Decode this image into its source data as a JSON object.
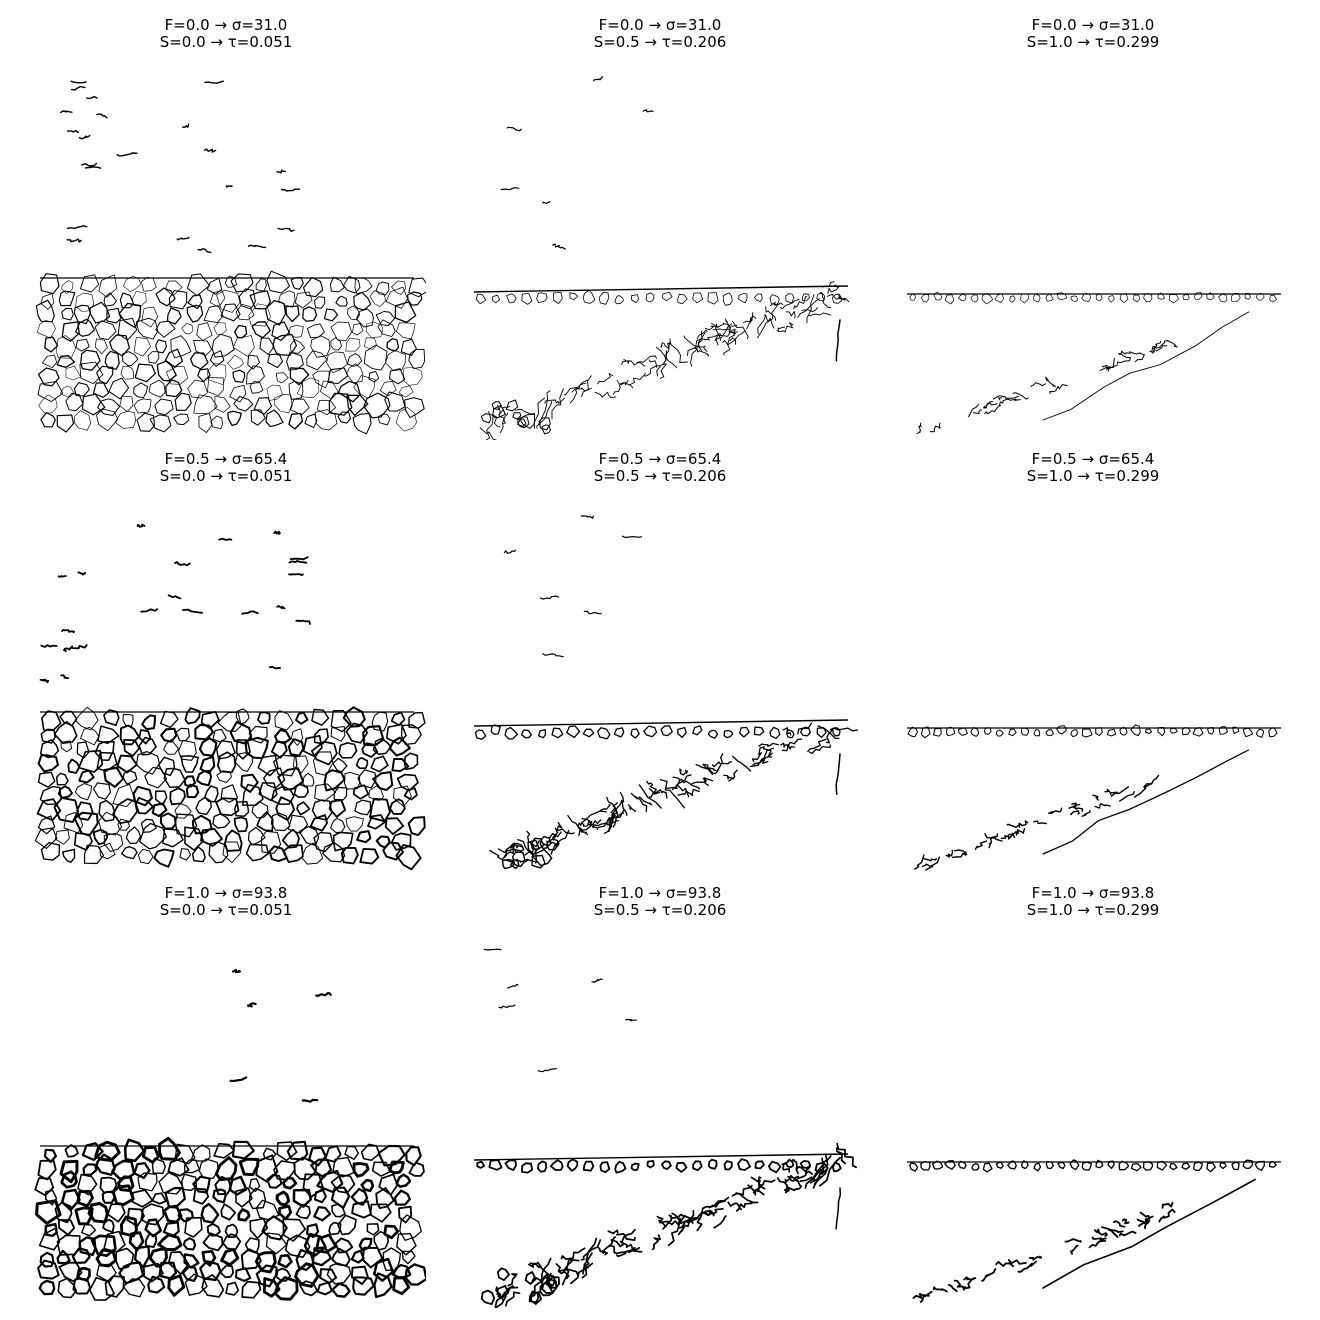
{
  "figure": {
    "panels": [
      {
        "line1": "F=0.0 → σ=31.0",
        "line2": "S=0.0 → τ=0.051",
        "style": "grain"
      },
      {
        "line1": "F=0.0 → σ=31.0",
        "line2": "S=0.5 → τ=0.206",
        "style": "wedge"
      },
      {
        "line1": "F=0.0 → σ=31.0",
        "line2": "S=1.0 → τ=0.299",
        "style": "sparse"
      },
      {
        "line1": "F=0.5 → σ=65.4",
        "line2": "S=0.0 → τ=0.051",
        "style": "grain"
      },
      {
        "line1": "F=0.5 → σ=65.4",
        "line2": "S=0.5 → τ=0.206",
        "style": "wedge"
      },
      {
        "line1": "F=0.5 → σ=65.4",
        "line2": "S=1.0 → τ=0.299",
        "style": "sparse"
      },
      {
        "line1": "F=1.0 → σ=93.8",
        "line2": "S=0.0 → τ=0.051",
        "style": "grain"
      },
      {
        "line1": "F=1.0 → σ=93.8",
        "line2": "S=0.5 → τ=0.206",
        "style": "wedge"
      },
      {
        "line1": "F=1.0 → σ=93.8",
        "line2": "S=1.0 → τ=0.299",
        "style": "sparse"
      }
    ],
    "stroke_color": "#000000",
    "background_color": "#ffffff"
  }
}
